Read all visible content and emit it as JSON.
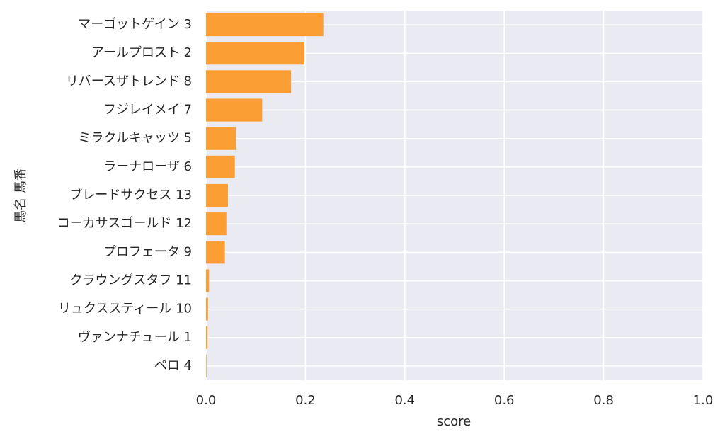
{
  "chart_data": {
    "type": "barh",
    "categories": [
      "マーゴットゲイン 3",
      "アールプロスト 2",
      "リバースザトレンド 8",
      "フジレイメイ 7",
      "ミラクルキャッツ 5",
      "ラーナローザ 6",
      "ブレードサクセス 13",
      "コーカサスゴールド 12",
      "プロフェータ 9",
      "クラウングスタフ 11",
      "リュクススティール 10",
      "ヴァンナチュール 1",
      "ペロ 4"
    ],
    "values": [
      0.236,
      0.198,
      0.171,
      0.113,
      0.06,
      0.058,
      0.044,
      0.041,
      0.038,
      0.006,
      0.004,
      0.003,
      0.001
    ],
    "color": "#fb9e33",
    "xlim": [
      0,
      1
    ],
    "xticks": [
      {
        "value": 0,
        "label": "0.0"
      },
      0.2,
      0.4,
      0.6,
      0.8,
      {
        "value": 1,
        "label": "1.0"
      }
    ],
    "xlabel": "score",
    "ylabel": "馬名 馬番",
    "grid": true
  }
}
